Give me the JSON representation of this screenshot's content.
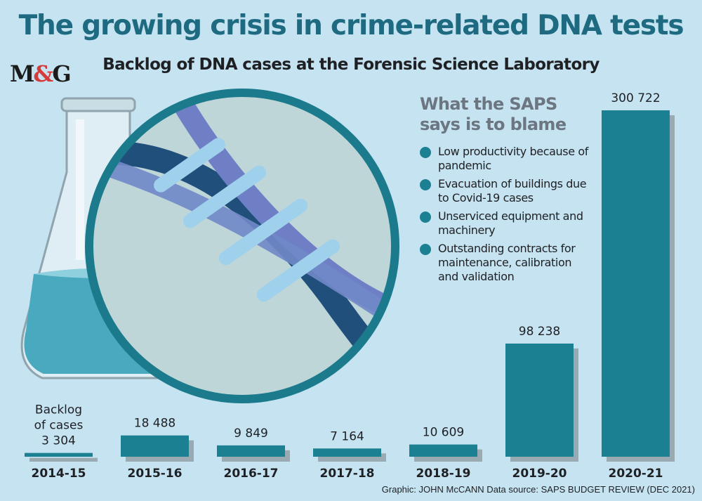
{
  "title": "The growing crisis in crime-related DNA tests",
  "subtitle": "Backlog of DNA cases at the Forensic Science Laboratory",
  "logo": {
    "main": "M",
    "amp": "&",
    "end": "G"
  },
  "colors": {
    "background": "#c5e3f1",
    "bar": "#1b8092",
    "bar_shadow": "#9aaab3",
    "title": "#1e6a80"
  },
  "blame": {
    "heading": "What the SAPS says is to blame",
    "items": [
      "Low productivity because of pandemic",
      "Evacuation of buildings due to Covid-19 cases",
      "Unserviced equipment and machinery",
      "Outstanding contracts for maintenance, calibration and validation"
    ]
  },
  "credit": "Graphic: JOHN McCANN  Data source: SAPS BUDGET REVIEW (DEC 2021)",
  "chart_data": {
    "type": "bar",
    "categories": [
      "2014-15",
      "2015-16",
      "2016-17",
      "2017-18",
      "2018-19",
      "2019-20",
      "2020-21"
    ],
    "values": [
      3304,
      18488,
      9849,
      7164,
      10609,
      98238,
      300722
    ],
    "value_labels": [
      "3 304",
      "18 488",
      "9 849",
      "7 164",
      "10 609",
      "98 238",
      "300 722"
    ],
    "first_label_prefix": [
      "Backlog",
      "of cases"
    ],
    "ylabel": "",
    "ylim": [
      0,
      300722
    ],
    "grid": false,
    "legend": "none"
  }
}
